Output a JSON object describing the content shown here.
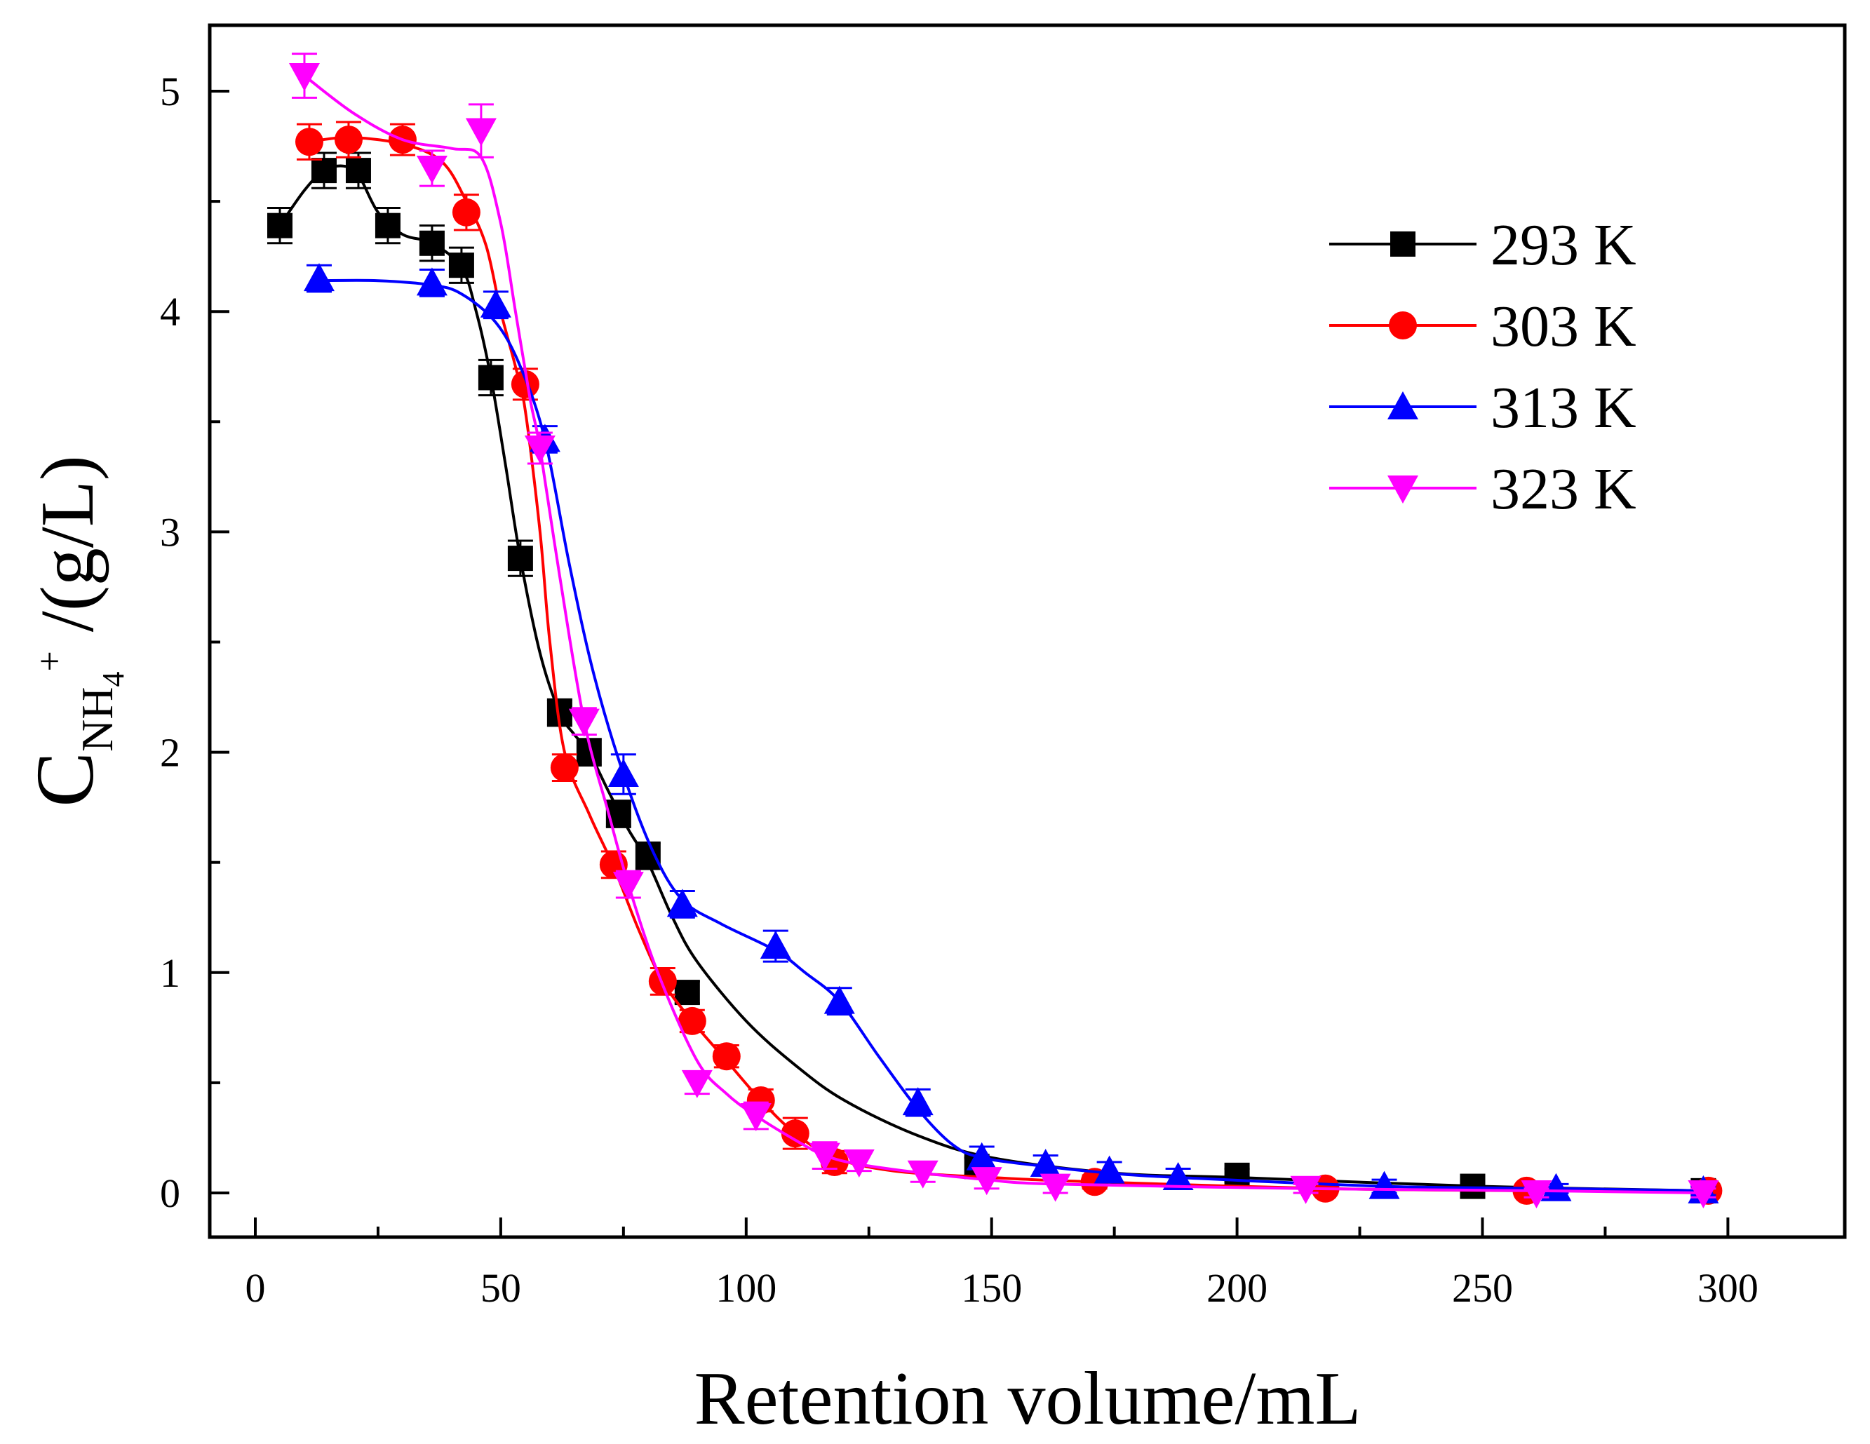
{
  "chart_data": {
    "type": "scatter",
    "title": "",
    "xlabel": "Retention volume/mL",
    "ylabel": {
      "main": "C",
      "sub": "NH",
      "subsub": "4",
      "sup": "+",
      "unit": " /(g/L)"
    },
    "xlim": [
      -10,
      325
    ],
    "ylim": [
      -0.2,
      5.3
    ],
    "xticks": [
      0,
      50,
      100,
      150,
      200,
      250,
      300
    ],
    "xtick_labels": [
      "0",
      "50",
      "100",
      "150",
      "200",
      "250",
      "300"
    ],
    "yticks": [
      0,
      1,
      2,
      3,
      4,
      5
    ],
    "ytick_labels": [
      "0",
      "1",
      "2",
      "3",
      "4",
      "5"
    ],
    "xminor": [
      25,
      75,
      125,
      175,
      225,
      275
    ],
    "yminor": [
      0.5,
      1.5,
      2.5,
      3.5,
      4.5
    ],
    "grid": false,
    "legend_position": "top-right",
    "series": [
      {
        "name": "293 K",
        "color": "#000000",
        "marker": "square",
        "x": [
          5,
          14,
          21,
          27,
          36,
          42,
          48,
          54,
          62,
          68,
          74,
          80,
          88,
          147,
          200,
          248,
          295
        ],
        "y": [
          4.39,
          4.64,
          4.64,
          4.39,
          4.31,
          4.21,
          3.7,
          2.88,
          2.18,
          2.0,
          1.72,
          1.53,
          0.91,
          0.12,
          0.08,
          0.03,
          0.01
        ],
        "err": [
          0.08,
          0.08,
          0.08,
          0.08,
          0.08,
          0.08,
          0.08,
          0.08,
          0.06,
          0.06,
          0.06,
          0.06,
          0.05,
          0.04,
          0.03,
          0.03,
          0.02
        ],
        "curve_x": [
          5,
          10,
          14,
          18,
          21,
          25,
          30,
          36,
          42,
          45,
          48,
          51,
          54,
          58,
          62,
          65,
          68,
          72,
          76,
          80,
          85,
          90,
          100,
          110,
          120,
          135,
          150,
          175,
          200,
          250,
          295
        ],
        "curve_y": [
          4.39,
          4.55,
          4.64,
          4.66,
          4.62,
          4.45,
          4.35,
          4.31,
          4.2,
          4.0,
          3.7,
          3.3,
          2.88,
          2.45,
          2.18,
          2.08,
          2.0,
          1.82,
          1.65,
          1.5,
          1.25,
          1.05,
          0.78,
          0.58,
          0.42,
          0.26,
          0.16,
          0.09,
          0.07,
          0.03,
          0.01
        ]
      },
      {
        "name": "303 K",
        "color": "#ff0000",
        "marker": "circle",
        "x": [
          11,
          19,
          30,
          43,
          55,
          63,
          73,
          83,
          89,
          96,
          103,
          110,
          118,
          171,
          218,
          259,
          296
        ],
        "y": [
          4.77,
          4.78,
          4.78,
          4.45,
          3.67,
          1.93,
          1.49,
          0.96,
          0.78,
          0.62,
          0.42,
          0.27,
          0.14,
          0.05,
          0.02,
          0.01,
          0.01
        ],
        "err": [
          0.08,
          0.08,
          0.07,
          0.08,
          0.07,
          0.06,
          0.06,
          0.06,
          0.05,
          0.05,
          0.05,
          0.07,
          0.05,
          0.03,
          0.02,
          0.02,
          0.02
        ],
        "curve_x": [
          11,
          19,
          30,
          38,
          43,
          47,
          50,
          53,
          55,
          58,
          60,
          63,
          68,
          73,
          78,
          83,
          89,
          96,
          103,
          110,
          118,
          130,
          150,
          171,
          218,
          259,
          296
        ],
        "curve_y": [
          4.77,
          4.79,
          4.76,
          4.68,
          4.5,
          4.3,
          4.0,
          3.75,
          3.55,
          3.0,
          2.5,
          2.0,
          1.72,
          1.48,
          1.2,
          0.96,
          0.78,
          0.6,
          0.42,
          0.27,
          0.16,
          0.1,
          0.07,
          0.05,
          0.02,
          0.01,
          0.01
        ]
      },
      {
        "name": "313 K",
        "color": "#0000ff",
        "marker": "triangle-up",
        "x": [
          13,
          36,
          49,
          59,
          75,
          87,
          106,
          119,
          135,
          148,
          161,
          174,
          188,
          230,
          265,
          295
        ],
        "y": [
          4.15,
          4.13,
          4.03,
          3.42,
          1.9,
          1.31,
          1.12,
          0.87,
          0.41,
          0.16,
          0.13,
          0.1,
          0.07,
          0.03,
          0.02,
          0.01
        ],
        "err": [
          0.06,
          0.06,
          0.06,
          0.06,
          0.09,
          0.06,
          0.07,
          0.06,
          0.06,
          0.05,
          0.04,
          0.04,
          0.04,
          0.03,
          0.02,
          0.02
        ],
        "curve_x": [
          13,
          25,
          36,
          42,
          49,
          54,
          59,
          64,
          69,
          75,
          81,
          87,
          95,
          106,
          112,
          119,
          127,
          135,
          142,
          148,
          161,
          174,
          188,
          230,
          265,
          295
        ],
        "curve_y": [
          4.14,
          4.14,
          4.12,
          4.08,
          3.95,
          3.75,
          3.42,
          2.85,
          2.35,
          1.9,
          1.55,
          1.33,
          1.22,
          1.1,
          1.0,
          0.87,
          0.62,
          0.38,
          0.22,
          0.16,
          0.12,
          0.09,
          0.07,
          0.03,
          0.02,
          0.01
        ]
      },
      {
        "name": "323 K",
        "color": "#ff00ff",
        "marker": "triangle-down",
        "x": [
          10,
          36,
          46,
          58,
          67,
          76,
          90,
          102,
          116,
          123,
          136,
          149,
          163,
          214,
          261,
          295
        ],
        "y": [
          5.07,
          4.65,
          4.82,
          3.38,
          2.14,
          1.4,
          0.5,
          0.35,
          0.17,
          0.14,
          0.09,
          0.06,
          0.03,
          0.02,
          0.0,
          0.0
        ],
        "err": [
          0.1,
          0.08,
          0.12,
          0.07,
          0.06,
          0.06,
          0.05,
          0.06,
          0.06,
          0.04,
          0.04,
          0.04,
          0.03,
          0.02,
          0.02,
          0.02
        ],
        "curve_x": [
          10,
          20,
          30,
          40,
          46,
          50,
          53,
          56,
          58,
          62,
          67,
          72,
          76,
          82,
          90,
          96,
          102,
          110,
          116,
          123,
          136,
          149,
          163,
          214,
          261,
          295
        ],
        "curve_y": [
          5.07,
          4.9,
          4.78,
          4.74,
          4.7,
          4.4,
          4.0,
          3.6,
          3.38,
          2.8,
          2.14,
          1.72,
          1.4,
          1.0,
          0.6,
          0.45,
          0.35,
          0.24,
          0.17,
          0.13,
          0.09,
          0.06,
          0.04,
          0.02,
          0.01,
          0.0
        ]
      }
    ]
  }
}
